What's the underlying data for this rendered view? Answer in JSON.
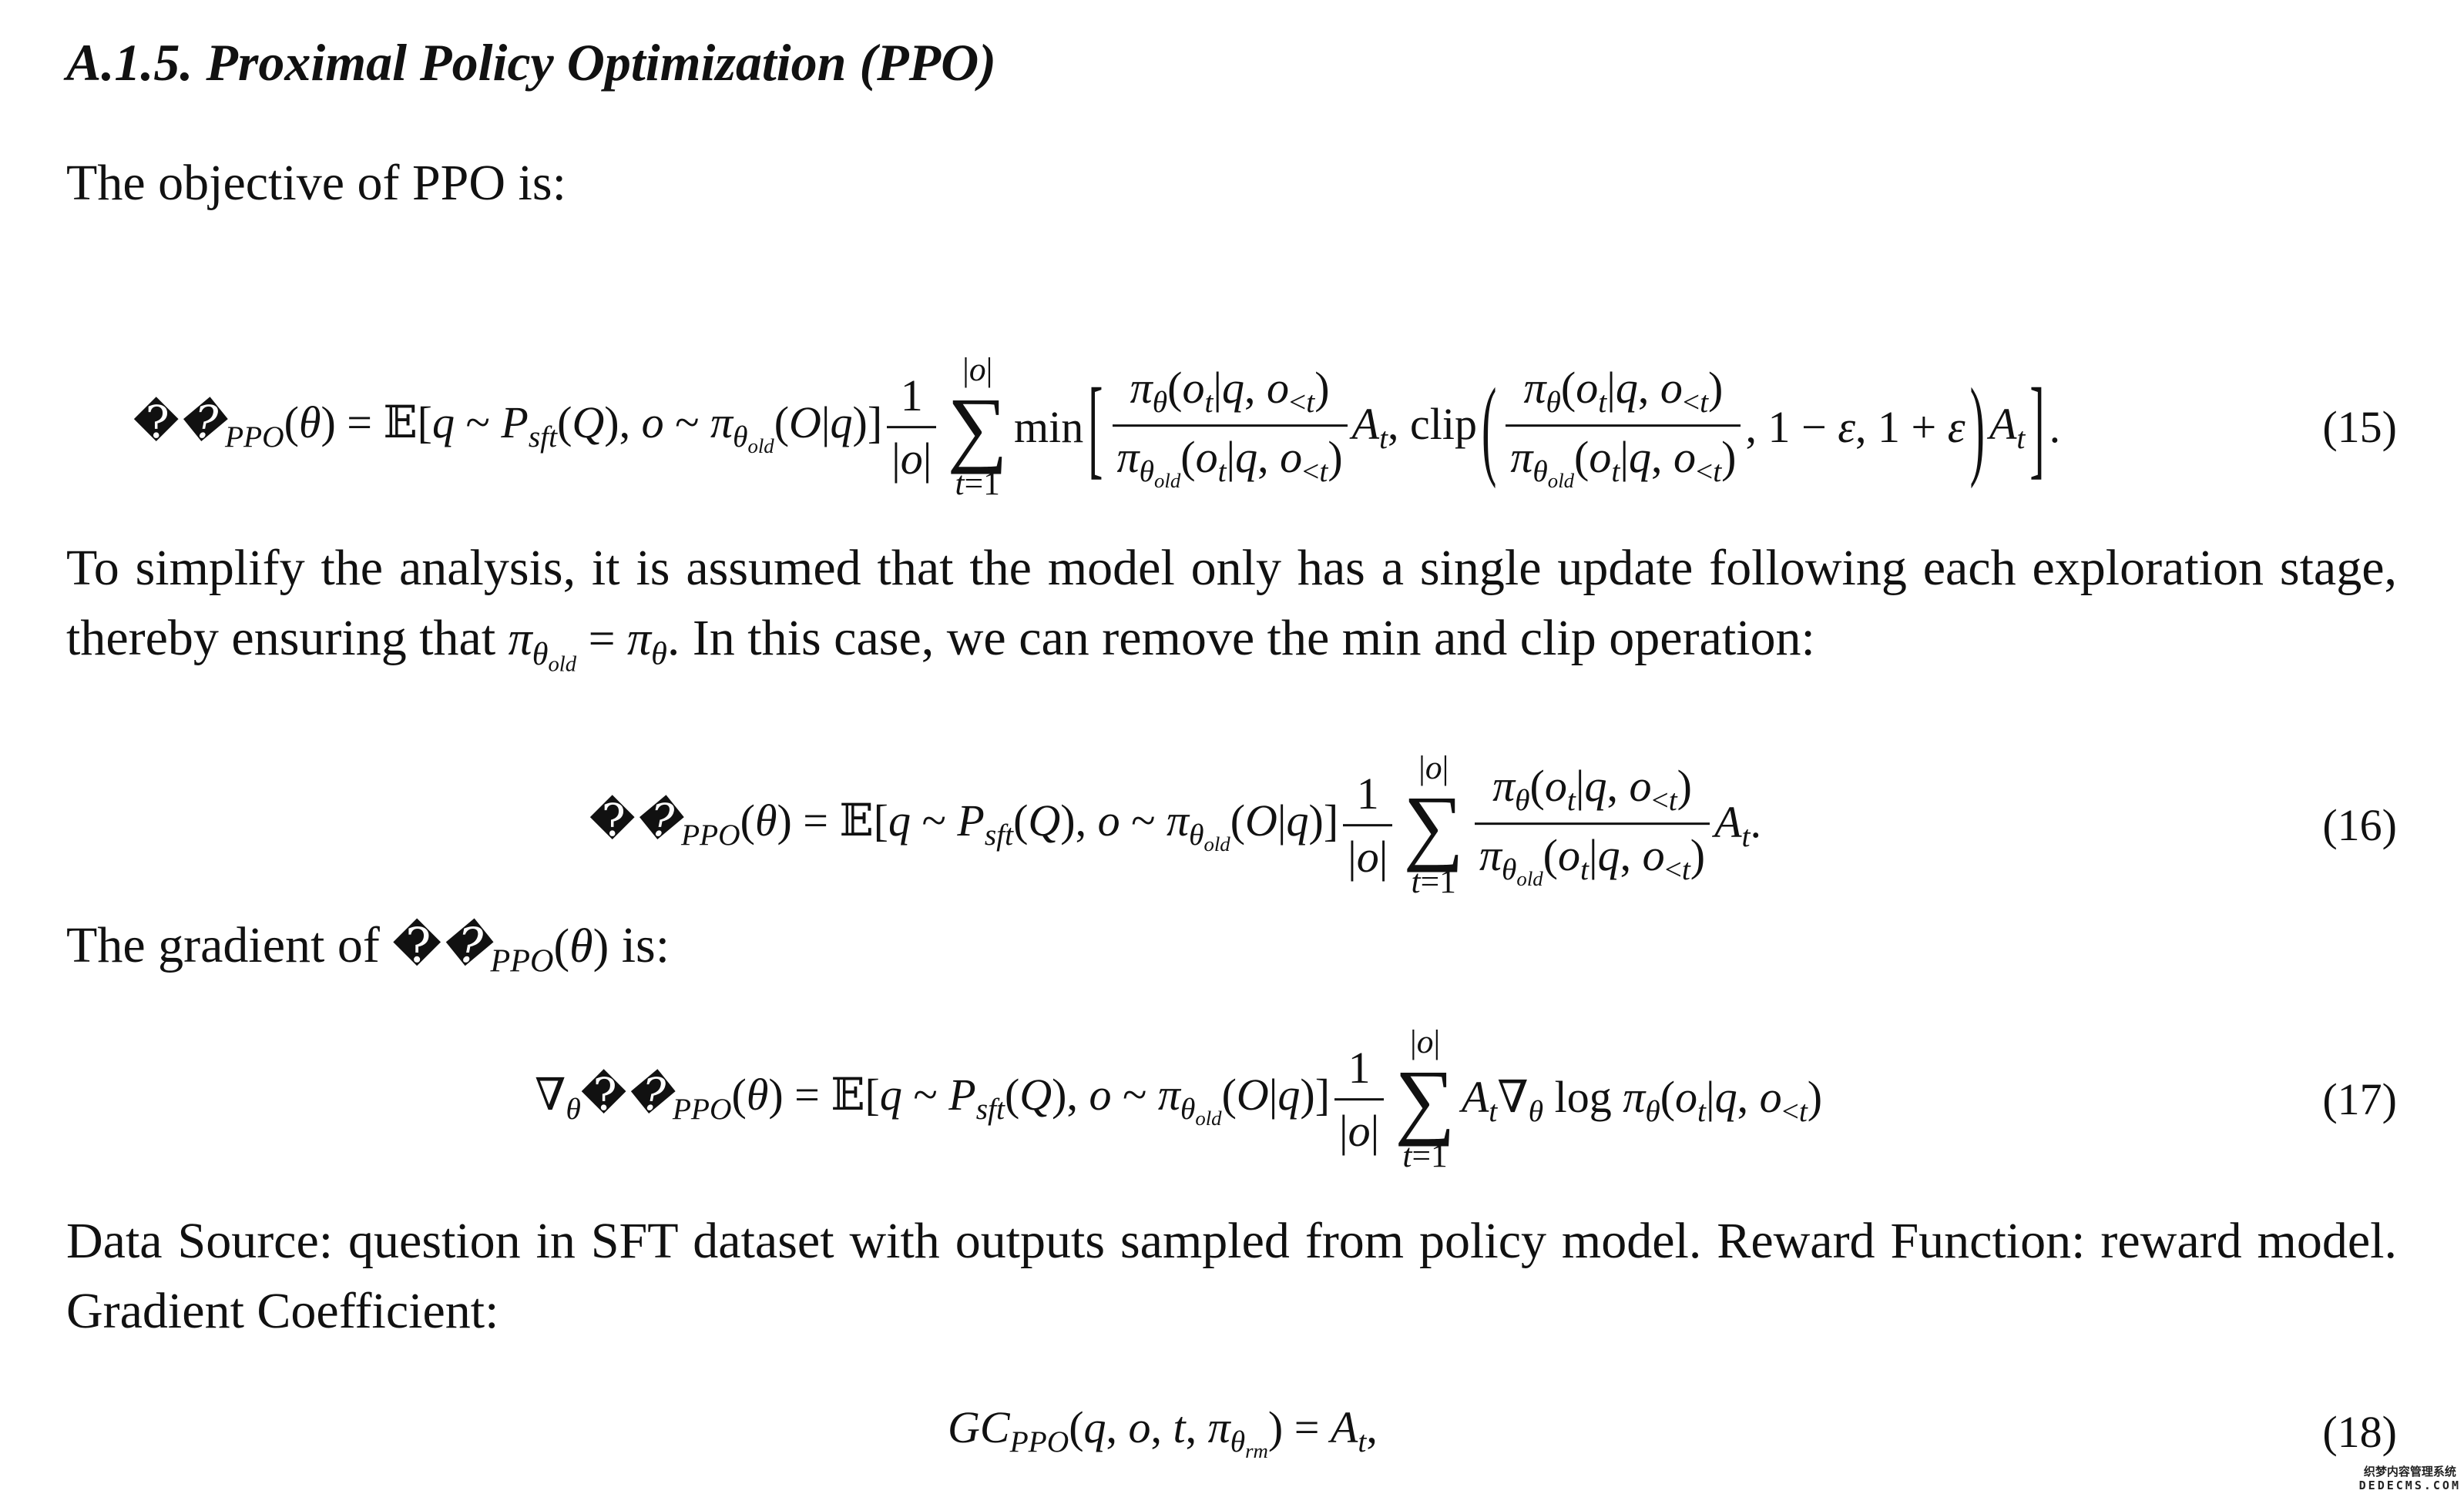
{
  "heading": "A.1.5.  Proximal Policy Optimization (PPO)",
  "intro": "The objective of PPO is:",
  "eq15": {
    "lhs": "𝒥_{PPO}(θ) = 𝔼[q ~ P_{sft}(Q), o ~ π_{θ_{old}}(O|q)]",
    "frac_num": "1",
    "frac_den": "|o|",
    "sum_top": "|o|",
    "sum_sym": "∑",
    "sum_bottom": "t=1",
    "min": "!{min}",
    "lbracket": "[",
    "ratio_num": "π_{θ}(o_{t}|q, o_{<t})",
    "ratio_den": "π_{θ_{old}}(o_{t}|q, o_{<t})",
    "mid": "A_{t}, !{clip}",
    "lparen": "(",
    "ratio2_num": "π_{θ}(o_{t}|q, o_{<t})",
    "ratio2_den": "π_{θ_{old}}(o_{t}|q, o_{<t})",
    "range": ", 1 − ε, 1 + ε",
    "rparen": ")",
    "adv": "A_{t}",
    "rbracket": "]",
    "end": ".",
    "number": "(15)"
  },
  "para1": {
    "text_a": "To simplify the analysis, it is assumed that the model only has a single update following each exploration stage, thereby ensuring that ",
    "math": "π_{θ_{old}} = π_{θ}",
    "text_b": ". In this case, we can remove the min and clip operation:"
  },
  "eq16": {
    "lhs": "𝒥_{PPO}(θ) = 𝔼[q ~ P_{sft}(Q), o ~ π_{θ_{old}}(O|q)]",
    "frac_num": "1",
    "frac_den": "|o|",
    "sum_top": "|o|",
    "sum_sym": "∑",
    "sum_bottom": "t=1",
    "ratio_num": "π_{θ}(o_{t}|q, o_{<t})",
    "ratio_den": "π_{θ_{old}}(o_{t}|q, o_{<t})",
    "tail": "A_{t}.",
    "number": "(16)"
  },
  "gradient_intro": {
    "text_a": "The gradient of ",
    "math": "𝒥_{PPO}(θ)",
    "text_b": " is:"
  },
  "eq17": {
    "lhs": "∇_{θ}𝒥_{PPO}(θ) = 𝔼[q ~ P_{sft}(Q), o ~ π_{θ_{old}}(O|q)]",
    "frac_num": "1",
    "frac_den": "|o|",
    "sum_top": "|o|",
    "sum_sym": "∑",
    "sum_bottom": "t=1",
    "tail": "A_{t}∇_{θ} !{log} π_{θ}(o_{t}|q, o_{<t})",
    "number": "(17)"
  },
  "para2": "Data Source: question in SFT dataset with outputs sampled from policy model. Reward Function: reward model. Gradient Coefficient:",
  "eq18": {
    "expr": "GC_{PPO}(q, o, t, π_{θ_{rm}}) = A_{t},",
    "number": "(18)"
  },
  "watermark": {
    "cn": "织梦内容管理系统",
    "en": "DEDECMS.COM"
  }
}
